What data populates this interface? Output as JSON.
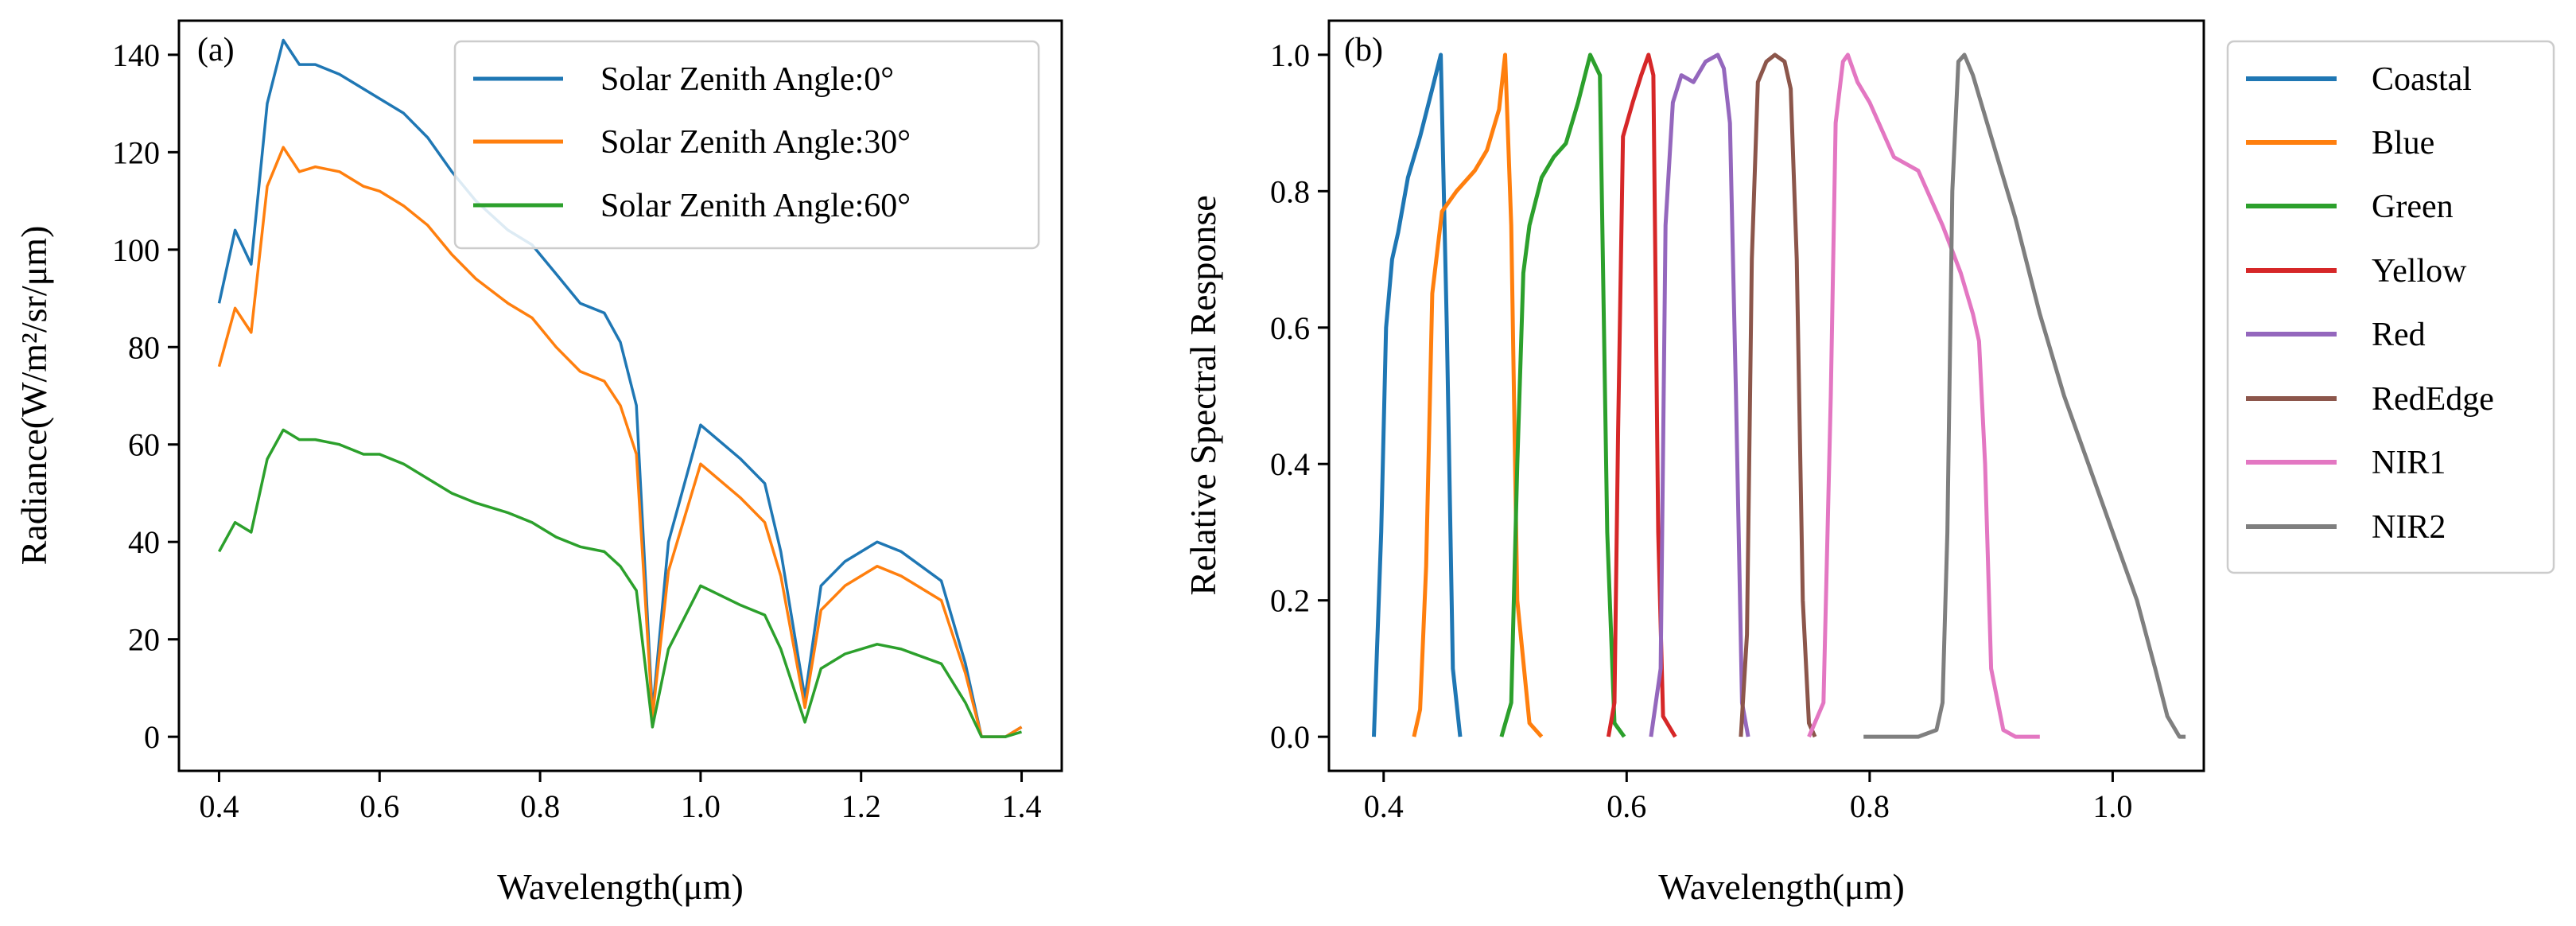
{
  "chart_data": [
    {
      "type": "line",
      "panel_label": "(a)",
      "xlabel": "Wavelength(μm)",
      "ylabel": "Radiance(W/m²/sr/μm)",
      "xlim": [
        0.35,
        1.45
      ],
      "ylim": [
        -7,
        147
      ],
      "xticks": [
        0.4,
        0.6,
        0.8,
        1.0,
        1.2,
        1.4
      ],
      "xtick_labels": [
        "0.4",
        "0.6",
        "0.8",
        "1.0",
        "1.2",
        "1.4"
      ],
      "yticks": [
        0,
        20,
        40,
        60,
        80,
        100,
        120,
        140
      ],
      "ytick_labels": [
        "0",
        "20",
        "40",
        "60",
        "80",
        "100",
        "120",
        "140"
      ],
      "legend_position": "top-right",
      "x": [
        0.4,
        0.42,
        0.44,
        0.46,
        0.48,
        0.5,
        0.52,
        0.55,
        0.58,
        0.6,
        0.63,
        0.66,
        0.69,
        0.72,
        0.76,
        0.79,
        0.82,
        0.85,
        0.88,
        0.9,
        0.92,
        0.94,
        0.96,
        1.0,
        1.05,
        1.08,
        1.1,
        1.13,
        1.15,
        1.18,
        1.22,
        1.25,
        1.3,
        1.33,
        1.35,
        1.38,
        1.4
      ],
      "series": [
        {
          "name": "Solar Zenith Angle:0°",
          "color": "#1f77b4",
          "values": [
            89,
            104,
            97,
            130,
            143,
            138,
            138,
            136,
            133,
            131,
            128,
            123,
            116,
            110,
            104,
            101,
            95,
            89,
            87,
            81,
            68,
            5,
            40,
            64,
            57,
            52,
            38,
            8,
            31,
            36,
            40,
            38,
            32,
            15,
            0,
            0,
            2
          ]
        },
        {
          "name": "Solar Zenith Angle:30°",
          "color": "#ff7f0e",
          "values": [
            76,
            88,
            83,
            113,
            121,
            116,
            117,
            116,
            113,
            112,
            109,
            105,
            99,
            94,
            89,
            86,
            80,
            75,
            73,
            68,
            58,
            4,
            34,
            56,
            49,
            44,
            33,
            6,
            26,
            31,
            35,
            33,
            28,
            13,
            0,
            0,
            2
          ]
        },
        {
          "name": "Solar Zenith Angle:60°",
          "color": "#2ca02c",
          "values": [
            38,
            44,
            42,
            57,
            63,
            61,
            61,
            60,
            58,
            58,
            56,
            53,
            50,
            48,
            46,
            44,
            41,
            39,
            38,
            35,
            30,
            2,
            18,
            31,
            27,
            25,
            18,
            3,
            14,
            17,
            19,
            18,
            15,
            7,
            0,
            0,
            1
          ]
        }
      ]
    },
    {
      "type": "line",
      "panel_label": "(b)",
      "xlabel": "Wavelength(μm)",
      "ylabel": "Relative Spectral Response",
      "xlim": [
        0.355,
        1.075
      ],
      "ylim": [
        -0.05,
        1.05
      ],
      "xticks": [
        0.4,
        0.6,
        0.8,
        1.0
      ],
      "xtick_labels": [
        "0.4",
        "0.6",
        "0.8",
        "1.0"
      ],
      "yticks": [
        0.0,
        0.2,
        0.4,
        0.6,
        0.8,
        1.0
      ],
      "ytick_labels": [
        "0.0",
        "0.2",
        "0.4",
        "0.6",
        "0.8",
        "1.0"
      ],
      "legend_position": "outside-right",
      "series": [
        {
          "name": "Coastal",
          "color": "#1f77b4",
          "x": [
            0.392,
            0.398,
            0.402,
            0.407,
            0.412,
            0.42,
            0.43,
            0.44,
            0.447,
            0.452,
            0.457,
            0.463
          ],
          "y": [
            0.0,
            0.3,
            0.6,
            0.7,
            0.74,
            0.82,
            0.88,
            0.95,
            1.0,
            0.6,
            0.1,
            0.0
          ]
        },
        {
          "name": "Blue",
          "color": "#ff7f0e",
          "x": [
            0.425,
            0.43,
            0.435,
            0.44,
            0.448,
            0.46,
            0.475,
            0.485,
            0.495,
            0.5,
            0.505,
            0.51,
            0.52,
            0.53
          ],
          "y": [
            0.0,
            0.04,
            0.25,
            0.65,
            0.77,
            0.8,
            0.83,
            0.86,
            0.92,
            1.0,
            0.75,
            0.2,
            0.02,
            0.0
          ]
        },
        {
          "name": "Green",
          "color": "#2ca02c",
          "x": [
            0.497,
            0.505,
            0.51,
            0.515,
            0.52,
            0.53,
            0.54,
            0.55,
            0.56,
            0.57,
            0.578,
            0.584,
            0.59,
            0.598
          ],
          "y": [
            0.0,
            0.05,
            0.4,
            0.68,
            0.75,
            0.82,
            0.85,
            0.87,
            0.93,
            1.0,
            0.97,
            0.3,
            0.02,
            0.0
          ]
        },
        {
          "name": "Yellow",
          "color": "#d62728",
          "x": [
            0.585,
            0.59,
            0.593,
            0.597,
            0.605,
            0.612,
            0.618,
            0.622,
            0.626,
            0.63,
            0.64
          ],
          "y": [
            0.0,
            0.05,
            0.45,
            0.88,
            0.93,
            0.97,
            1.0,
            0.97,
            0.3,
            0.03,
            0.0
          ]
        },
        {
          "name": "Red",
          "color": "#9467bd",
          "x": [
            0.62,
            0.628,
            0.632,
            0.638,
            0.645,
            0.655,
            0.665,
            0.675,
            0.68,
            0.685,
            0.69,
            0.695,
            0.7
          ],
          "y": [
            0.0,
            0.1,
            0.75,
            0.93,
            0.97,
            0.96,
            0.99,
            1.0,
            0.98,
            0.9,
            0.5,
            0.05,
            0.0
          ]
        },
        {
          "name": "RedEdge",
          "color": "#8c564b",
          "x": [
            0.694,
            0.699,
            0.703,
            0.708,
            0.715,
            0.722,
            0.73,
            0.735,
            0.74,
            0.745,
            0.75,
            0.755
          ],
          "y": [
            0.0,
            0.15,
            0.7,
            0.96,
            0.99,
            1.0,
            0.99,
            0.95,
            0.7,
            0.2,
            0.02,
            0.0
          ]
        },
        {
          "name": "NIR1",
          "color": "#e377c2",
          "x": [
            0.75,
            0.762,
            0.768,
            0.772,
            0.778,
            0.782,
            0.79,
            0.8,
            0.82,
            0.84,
            0.86,
            0.875,
            0.885,
            0.89,
            0.895,
            0.9,
            0.91,
            0.92,
            0.94
          ],
          "y": [
            0.0,
            0.05,
            0.5,
            0.9,
            0.99,
            1.0,
            0.96,
            0.93,
            0.85,
            0.83,
            0.75,
            0.68,
            0.62,
            0.58,
            0.4,
            0.1,
            0.01,
            0.0,
            0.0
          ]
        },
        {
          "name": "NIR2",
          "color": "#7f7f7f",
          "x": [
            0.795,
            0.84,
            0.855,
            0.86,
            0.864,
            0.868,
            0.873,
            0.878,
            0.885,
            0.9,
            0.92,
            0.94,
            0.96,
            0.98,
            1.0,
            1.02,
            1.035,
            1.045,
            1.055,
            1.06
          ],
          "y": [
            0.0,
            0.0,
            0.01,
            0.05,
            0.3,
            0.8,
            0.99,
            1.0,
            0.97,
            0.88,
            0.76,
            0.62,
            0.5,
            0.4,
            0.3,
            0.2,
            0.1,
            0.03,
            0.0,
            0.0
          ]
        }
      ]
    }
  ]
}
